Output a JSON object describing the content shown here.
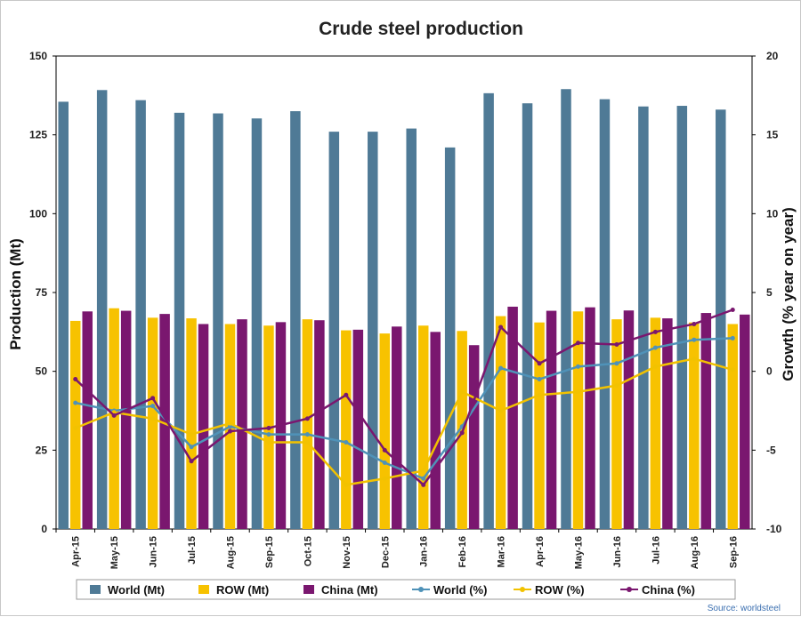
{
  "chart_data": {
    "type": "bar",
    "title": "Crude steel production",
    "ylabel_left": "Production (Mt)",
    "ylabel_right": "Growth (% year on year)",
    "ylim_left": [
      0,
      150
    ],
    "yticks_left": [
      "0",
      "25",
      "50",
      "75",
      "100",
      "125",
      "150"
    ],
    "ylim_right": [
      -10,
      20
    ],
    "yticks_right": [
      "-10",
      "-5",
      "0",
      "5",
      "10",
      "15",
      "20"
    ],
    "categories": [
      "Apr-15",
      "May-15",
      "Jun-15",
      "Jul-15",
      "Aug-15",
      "Sep-15",
      "Oct-15",
      "Nov-15",
      "Dec-15",
      "Jan-16",
      "Feb-16",
      "Mar-16",
      "Apr-16",
      "May-16",
      "Jun-16",
      "Jul-16",
      "Aug-16",
      "Sep-16"
    ],
    "grid": false,
    "legend_position": "bottom",
    "bar_series": [
      {
        "name": "World (Mt)",
        "color": "#4f7a96",
        "values": [
          135.5,
          139.2,
          136,
          132,
          131.8,
          130.2,
          132.5,
          126,
          126,
          127,
          121,
          138.2,
          135,
          139.5,
          136.3,
          134,
          134.2,
          133
        ]
      },
      {
        "name": "ROW (Mt)",
        "color": "#f7c200",
        "values": [
          66,
          70,
          67,
          66.8,
          65,
          64.5,
          66.5,
          63,
          62,
          64.5,
          62.8,
          67.5,
          65.5,
          69,
          66.5,
          67,
          65.5,
          65
        ]
      },
      {
        "name": "China (Mt)",
        "color": "#7a176f",
        "values": [
          69,
          69.2,
          68.2,
          65,
          66.5,
          65.6,
          66.2,
          63.2,
          64.2,
          62.5,
          58.3,
          70.5,
          69.2,
          70.3,
          69.3,
          66.8,
          68.5,
          68
        ]
      }
    ],
    "line_series": [
      {
        "name": "World (%)",
        "color": "#4f92b8",
        "values": [
          -2,
          -2.5,
          -2.2,
          -4.8,
          -3.5,
          -4,
          -4,
          -4.5,
          -5.8,
          -6.8,
          -3.5,
          0.2,
          -0.5,
          0.3,
          0.5,
          1.5,
          2,
          2.1
        ]
      },
      {
        "name": "ROW (%)",
        "color": "#f2c200",
        "values": [
          -3.6,
          -2.6,
          -3,
          -4,
          -3.3,
          -4.5,
          -4.5,
          -7.2,
          -6.8,
          -6.3,
          -1.3,
          -2.5,
          -1.5,
          -1.3,
          -0.9,
          0.3,
          0.8,
          0.1
        ]
      },
      {
        "name": "China (%)",
        "color": "#7a176f",
        "values": [
          -0.5,
          -2.8,
          -1.7,
          -5.7,
          -3.8,
          -3.6,
          -3,
          -1.5,
          -5,
          -7.2,
          -3.9,
          2.8,
          0.5,
          1.8,
          1.7,
          2.5,
          3,
          3.9
        ]
      }
    ],
    "source": "Source: worldsteel"
  }
}
